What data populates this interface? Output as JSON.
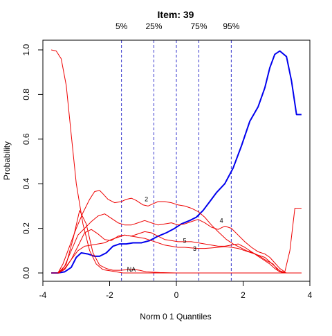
{
  "chart_data": {
    "type": "line",
    "title": "Item:  39",
    "xlabel": "Norm 0 1 Quantiles",
    "ylabel": "Probability",
    "xlim": [
      -4,
      4
    ],
    "ylim": [
      0,
      1
    ],
    "xticks": [
      -4,
      -2,
      0,
      2,
      4
    ],
    "yticks": [
      0.0,
      0.2,
      0.4,
      0.6,
      0.8,
      1.0
    ],
    "ytick_labels": [
      "0.0",
      "0.2",
      "0.4",
      "0.6",
      "0.8",
      "1.0"
    ],
    "grid": false,
    "percentiles": [
      {
        "label": "5%",
        "x": -1.645
      },
      {
        "label": "25%",
        "x": -0.674
      },
      {
        "label": "",
        "x": 0
      },
      {
        "label": "75%",
        "x": 0.674
      },
      {
        "label": "95%",
        "x": 1.645
      }
    ],
    "percentile_line_color": "#3333cc",
    "series": [
      {
        "label": "",
        "color": "#0000ee",
        "width": 2,
        "label_at": null,
        "x": [
          -3.75,
          -3.55,
          -3.35,
          -3.15,
          -3.0,
          -2.85,
          -2.65,
          -2.45,
          -2.3,
          -2.1,
          -1.9,
          -1.7,
          -1.5,
          -1.3,
          -1.05,
          -0.8,
          -0.55,
          -0.3,
          -0.05,
          0.15,
          0.4,
          0.6,
          0.8,
          1.0,
          1.2,
          1.45,
          1.7,
          1.95,
          2.2,
          2.45,
          2.65,
          2.8,
          2.95,
          3.1,
          3.3,
          3.45,
          3.6,
          3.75
        ],
        "y": [
          0.0,
          0.0,
          0.005,
          0.025,
          0.07,
          0.09,
          0.085,
          0.075,
          0.075,
          0.09,
          0.12,
          0.13,
          0.13,
          0.135,
          0.135,
          0.145,
          0.165,
          0.18,
          0.2,
          0.22,
          0.235,
          0.25,
          0.28,
          0.32,
          0.36,
          0.4,
          0.47,
          0.57,
          0.68,
          0.745,
          0.83,
          0.92,
          0.98,
          0.995,
          0.97,
          0.86,
          0.71,
          0.71
        ]
      },
      {
        "label": "",
        "color": "#ee0000",
        "width": 1,
        "label_at": null,
        "x": [
          -3.75,
          -3.6,
          -3.45,
          -3.3,
          -3.15,
          -3.0,
          -2.8,
          -2.6,
          -2.4,
          -2.2,
          -2.0,
          -1.8,
          -1.6,
          -1.4,
          -1.0,
          -0.5,
          0.0,
          1.0,
          2.0,
          3.0,
          3.75
        ],
        "y": [
          1.0,
          0.995,
          0.96,
          0.84,
          0.62,
          0.4,
          0.22,
          0.1,
          0.04,
          0.015,
          0.01,
          0.005,
          0.0,
          0.0,
          0.0,
          0.0,
          0.0,
          0.0,
          0.0,
          0.0,
          0.0
        ]
      },
      {
        "label": "NA",
        "color": "#ee0000",
        "width": 1,
        "label_at": [
          -1.35,
          0.015
        ],
        "x": [
          -3.75,
          -3.5,
          -3.3,
          -3.1,
          -2.9,
          -2.7,
          -2.5,
          -2.3,
          -2.1,
          -1.9,
          -1.7,
          -1.5,
          -1.3,
          -1.1,
          -0.9,
          -0.5,
          0.0,
          1.0,
          2.0,
          3.0,
          3.75
        ],
        "y": [
          0.0,
          0.0,
          0.04,
          0.15,
          0.28,
          0.22,
          0.09,
          0.035,
          0.02,
          0.012,
          0.012,
          0.014,
          0.016,
          0.012,
          0.005,
          0.002,
          0.0,
          0.0,
          0.0,
          0.0,
          0.0
        ]
      },
      {
        "label": "2",
        "color": "#ee0000",
        "width": 1,
        "label_at": [
          -0.9,
          0.33
        ],
        "x": [
          -3.75,
          -3.55,
          -3.4,
          -3.2,
          -3.0,
          -2.8,
          -2.6,
          -2.45,
          -2.3,
          -2.2,
          -2.05,
          -1.85,
          -1.65,
          -1.5,
          -1.35,
          -1.2,
          -1.0,
          -0.85,
          -0.7,
          -0.55,
          -0.35,
          -0.15,
          0.05,
          0.25,
          0.45,
          0.65,
          0.85,
          1.05,
          1.25,
          1.5,
          1.7,
          1.9,
          2.1,
          2.3,
          2.5,
          2.7,
          2.9,
          3.05,
          3.2,
          3.35,
          3.5,
          3.75
        ],
        "y": [
          0.0,
          0.0,
          0.04,
          0.12,
          0.2,
          0.27,
          0.33,
          0.365,
          0.37,
          0.355,
          0.33,
          0.315,
          0.32,
          0.33,
          0.335,
          0.325,
          0.305,
          0.3,
          0.31,
          0.32,
          0.32,
          0.315,
          0.305,
          0.3,
          0.29,
          0.275,
          0.25,
          0.215,
          0.185,
          0.15,
          0.13,
          0.115,
          0.1,
          0.09,
          0.075,
          0.055,
          0.04,
          0.01,
          0.0,
          0.0,
          0.0,
          0.0
        ]
      },
      {
        "label": "4",
        "color": "#ee0000",
        "width": 1,
        "label_at": [
          1.35,
          0.235
        ],
        "x": [
          -3.75,
          -3.55,
          -3.35,
          -3.15,
          -2.95,
          -2.75,
          -2.55,
          -2.35,
          -2.15,
          -1.95,
          -1.75,
          -1.55,
          -1.35,
          -1.15,
          -0.95,
          -0.75,
          -0.55,
          -0.35,
          -0.15,
          0.05,
          0.25,
          0.45,
          0.65,
          0.85,
          1.05,
          1.25,
          1.45,
          1.65,
          1.85,
          2.05,
          2.25,
          2.45,
          2.65,
          2.8,
          2.95,
          3.1,
          3.25,
          3.4,
          3.55,
          3.75
        ],
        "y": [
          0.0,
          0.0,
          0.03,
          0.1,
          0.17,
          0.2,
          0.23,
          0.255,
          0.265,
          0.245,
          0.225,
          0.215,
          0.215,
          0.225,
          0.235,
          0.225,
          0.215,
          0.22,
          0.225,
          0.215,
          0.22,
          0.23,
          0.24,
          0.225,
          0.205,
          0.195,
          0.21,
          0.2,
          0.17,
          0.14,
          0.115,
          0.095,
          0.085,
          0.07,
          0.045,
          0.02,
          0.005,
          0.1,
          0.29,
          0.29
        ]
      },
      {
        "label": "5",
        "color": "#ee0000",
        "width": 1,
        "label_at": [
          0.25,
          0.145
        ],
        "x": [
          -3.75,
          -3.55,
          -3.35,
          -3.15,
          -2.95,
          -2.75,
          -2.55,
          -2.35,
          -2.15,
          -1.95,
          -1.75,
          -1.55,
          -1.35,
          -1.15,
          -0.95,
          -0.75,
          -0.55,
          -0.35,
          -0.15,
          0.05,
          0.25,
          0.45,
          0.65,
          0.85,
          1.05,
          1.25,
          1.45,
          1.65,
          1.85,
          2.05,
          2.25,
          2.45,
          2.65,
          2.8,
          2.95,
          3.1,
          3.3,
          3.55,
          3.75
        ],
        "y": [
          0.0,
          0.0,
          0.015,
          0.06,
          0.12,
          0.18,
          0.195,
          0.175,
          0.15,
          0.145,
          0.165,
          0.17,
          0.165,
          0.175,
          0.185,
          0.18,
          0.165,
          0.15,
          0.145,
          0.14,
          0.14,
          0.14,
          0.135,
          0.13,
          0.125,
          0.12,
          0.12,
          0.125,
          0.13,
          0.115,
          0.095,
          0.075,
          0.055,
          0.04,
          0.02,
          0.005,
          0.0,
          0.0,
          0.0
        ]
      },
      {
        "label": "3",
        "color": "#ee0000",
        "width": 1,
        "label_at": [
          0.55,
          0.108
        ],
        "x": [
          -3.75,
          -3.55,
          -3.35,
          -3.15,
          -2.95,
          -2.75,
          -2.55,
          -2.35,
          -2.15,
          -1.95,
          -1.75,
          -1.55,
          -1.35,
          -1.15,
          -0.95,
          -0.75,
          -0.55,
          -0.35,
          -0.15,
          0.05,
          0.25,
          0.45,
          0.65,
          0.85,
          1.05,
          1.25,
          1.45,
          1.65,
          1.85,
          2.05,
          2.25,
          2.45,
          2.65,
          2.8,
          2.95,
          3.1,
          3.3,
          3.55,
          3.75
        ],
        "y": [
          0.0,
          0.0,
          0.02,
          0.06,
          0.1,
          0.12,
          0.125,
          0.13,
          0.135,
          0.15,
          0.16,
          0.17,
          0.165,
          0.16,
          0.155,
          0.145,
          0.135,
          0.125,
          0.12,
          0.115,
          0.115,
          0.112,
          0.11,
          0.11,
          0.112,
          0.115,
          0.118,
          0.115,
          0.11,
          0.1,
          0.09,
          0.08,
          0.07,
          0.05,
          0.03,
          0.01,
          0.0,
          0.0,
          0.0
        ]
      }
    ]
  }
}
